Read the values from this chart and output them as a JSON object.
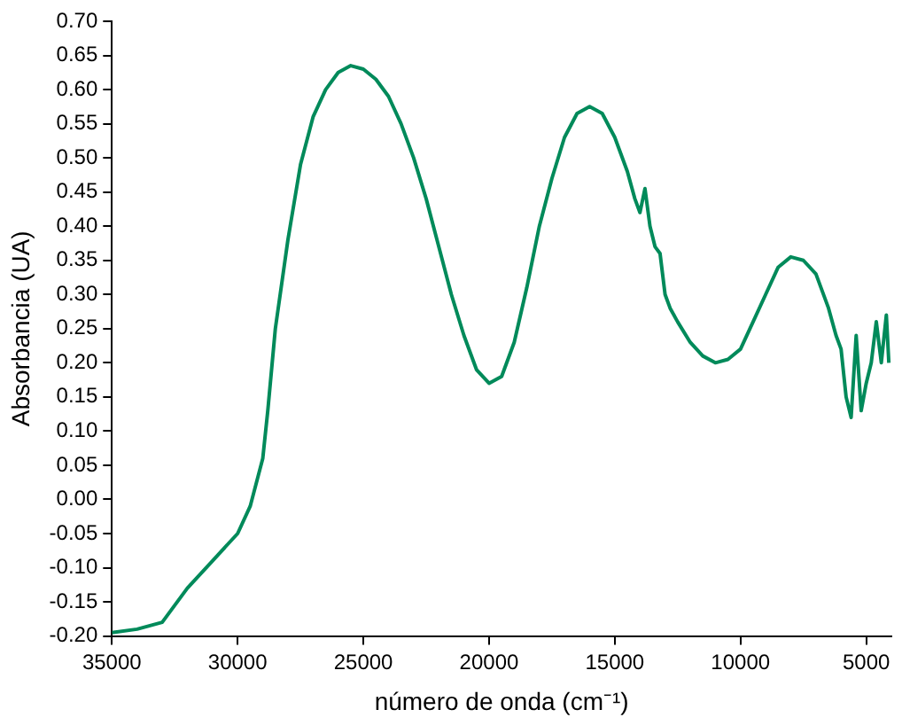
{
  "chart_data": {
    "type": "line",
    "xlabel": "número de onda (cm⁻¹)",
    "ylabel": "Absorbancia (UA)",
    "marker": "none",
    "grid": false,
    "legend": false,
    "xlim": [
      35000,
      4000
    ],
    "xticks": [
      35000,
      30000,
      25000,
      20000,
      15000,
      10000,
      5000
    ],
    "ylim": [
      -0.2,
      0.7
    ],
    "yticks": [
      {
        "value": -0.2,
        "label": "-0.20"
      },
      {
        "value": -0.15,
        "label": "-0.15"
      },
      {
        "value": -0.1,
        "label": "-0.10"
      },
      {
        "value": -0.05,
        "label": "-0.05"
      },
      {
        "value": 0,
        "label": "0.00"
      },
      {
        "value": 0.05,
        "label": "0.05"
      },
      {
        "value": 0.1,
        "label": "0.10"
      },
      {
        "value": 0.15,
        "label": "0.15"
      },
      {
        "value": 0.2,
        "label": "0.20"
      },
      {
        "value": 0.25,
        "label": "0.25"
      },
      {
        "value": 0.3,
        "label": "0.30"
      },
      {
        "value": 0.35,
        "label": "0.35"
      },
      {
        "value": 0.4,
        "label": "0.40"
      },
      {
        "value": 0.45,
        "label": "0.45"
      },
      {
        "value": 0.5,
        "label": "0.50"
      },
      {
        "value": 0.55,
        "label": "0.55"
      },
      {
        "value": 0.6,
        "label": "0.60"
      },
      {
        "value": 0.65,
        "label": "0.65"
      },
      {
        "value": 0.7,
        "label": "0.70"
      }
    ],
    "x": [
      35000,
      34000,
      33000,
      32000,
      31000,
      30000,
      29500,
      29000,
      28800,
      28500,
      28000,
      27500,
      27000,
      26500,
      26000,
      25500,
      25000,
      24500,
      24000,
      23500,
      23000,
      22500,
      22000,
      21500,
      21000,
      20500,
      20000,
      19500,
      19000,
      18500,
      18000,
      17500,
      17000,
      16500,
      16000,
      15500,
      15000,
      14500,
      14200,
      14000,
      13800,
      13600,
      13400,
      13200,
      13000,
      12800,
      12500,
      12000,
      11500,
      11000,
      10500,
      10000,
      9500,
      9000,
      8500,
      8000,
      7500,
      7000,
      6500,
      6200,
      6000,
      5800,
      5600,
      5400,
      5200,
      5000,
      4800,
      4600,
      4400,
      4200,
      4100
    ],
    "series": [
      {
        "color": "#008a5a",
        "values": [
          -0.195,
          -0.19,
          -0.18,
          -0.13,
          -0.09,
          -0.05,
          -0.01,
          0.06,
          0.13,
          0.25,
          0.38,
          0.49,
          0.56,
          0.6,
          0.625,
          0.635,
          0.63,
          0.615,
          0.59,
          0.55,
          0.5,
          0.44,
          0.37,
          0.3,
          0.24,
          0.19,
          0.17,
          0.18,
          0.23,
          0.31,
          0.4,
          0.47,
          0.53,
          0.565,
          0.575,
          0.565,
          0.53,
          0.48,
          0.44,
          0.42,
          0.455,
          0.4,
          0.37,
          0.36,
          0.3,
          0.28,
          0.26,
          0.23,
          0.21,
          0.2,
          0.205,
          0.22,
          0.26,
          0.3,
          0.34,
          0.355,
          0.35,
          0.33,
          0.28,
          0.24,
          0.22,
          0.15,
          0.12,
          0.24,
          0.13,
          0.17,
          0.2,
          0.26,
          0.2,
          0.27,
          0.2
        ]
      }
    ]
  }
}
